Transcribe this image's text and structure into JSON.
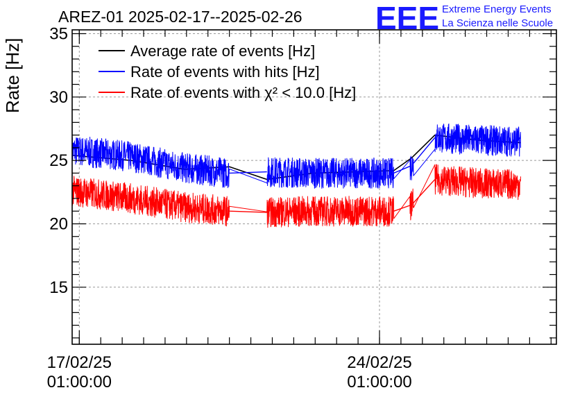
{
  "chart_data": {
    "type": "line",
    "title": "AREZ-01 2025-02-17--2025-02-26",
    "ylabel": "Rate [Hz]",
    "xlabel": "",
    "ylim": [
      10.5,
      35.3
    ],
    "xlim": [
      "2025-02-16T21:00:00",
      "2025-02-28T04:00:00"
    ],
    "y_ticks": [
      15,
      20,
      25,
      30,
      35
    ],
    "x_ticks": [
      {
        "x": "2025-02-17T01:00:00",
        "label_date": "17/02/25",
        "label_time": "01:00:00"
      },
      {
        "x": "2025-02-24T01:00:00",
        "label_date": "24/02/25",
        "label_time": "01:00:00"
      }
    ],
    "grid": true,
    "legend_position": "top-left",
    "segments": [
      {
        "start": "2025-02-16T21:00:00",
        "end": "2025-02-20T13:00:00"
      },
      {
        "start": "2025-02-21T10:00:00",
        "end": "2025-02-24T09:00:00"
      },
      {
        "start": "2025-02-24T18:00:00",
        "end": "2025-02-24T20:00:00"
      },
      {
        "start": "2025-02-25T08:00:00",
        "end": "2025-02-27T08:00:00"
      }
    ],
    "series": [
      {
        "name": "Average rate of events [Hz]",
        "color": "#000000",
        "points": [
          {
            "x": "2025-02-16T21:00:00",
            "y": 25.4
          },
          {
            "x": "2025-02-18T06:00:00",
            "y": 25.0
          },
          {
            "x": "2025-02-19T12:00:00",
            "y": 24.3
          },
          {
            "x": "2025-02-20T13:00:00",
            "y": 24.5
          },
          {
            "x": "2025-02-21T10:00:00",
            "y": 23.5
          },
          {
            "x": "2025-02-22T12:00:00",
            "y": 24.0
          },
          {
            "x": "2025-02-23T12:00:00",
            "y": 24.1
          },
          {
            "x": "2025-02-24T09:00:00",
            "y": 24.2
          },
          {
            "x": "2025-02-24T19:00:00",
            "y": 25.2
          },
          {
            "x": "2025-02-25T08:00:00",
            "y": 27.0
          },
          {
            "x": "2025-02-26T08:00:00",
            "y": 26.6
          },
          {
            "x": "2025-02-27T08:00:00",
            "y": 26.4
          }
        ]
      },
      {
        "name": "Rate of events with hits [Hz]",
        "color": "#0000ff",
        "points": [
          {
            "x": "2025-02-16T21:00:00",
            "y": 25.8
          },
          {
            "x": "2025-02-18T06:00:00",
            "y": 25.3
          },
          {
            "x": "2025-02-19T12:00:00",
            "y": 24.4
          },
          {
            "x": "2025-02-20T13:00:00",
            "y": 24.0
          },
          {
            "x": "2025-02-21T10:00:00",
            "y": 24.1
          },
          {
            "x": "2025-02-22T12:00:00",
            "y": 24.0
          },
          {
            "x": "2025-02-23T12:00:00",
            "y": 24.0
          },
          {
            "x": "2025-02-24T09:00:00",
            "y": 24.0
          },
          {
            "x": "2025-02-24T19:00:00",
            "y": 24.6
          },
          {
            "x": "2025-02-25T08:00:00",
            "y": 26.8
          },
          {
            "x": "2025-02-26T08:00:00",
            "y": 26.6
          },
          {
            "x": "2025-02-27T08:00:00",
            "y": 26.5
          }
        ]
      },
      {
        "name": "Rate of events with χ² < 10.0 [Hz]",
        "color": "#ff0000",
        "points": [
          {
            "x": "2025-02-16T21:00:00",
            "y": 22.6
          },
          {
            "x": "2025-02-18T06:00:00",
            "y": 22.0
          },
          {
            "x": "2025-02-19T12:00:00",
            "y": 21.3
          },
          {
            "x": "2025-02-20T13:00:00",
            "y": 21.0
          },
          {
            "x": "2025-02-21T10:00:00",
            "y": 20.9
          },
          {
            "x": "2025-02-22T12:00:00",
            "y": 21.0
          },
          {
            "x": "2025-02-23T12:00:00",
            "y": 21.0
          },
          {
            "x": "2025-02-24T09:00:00",
            "y": 21.0
          },
          {
            "x": "2025-02-24T19:00:00",
            "y": 21.5
          },
          {
            "x": "2025-02-25T08:00:00",
            "y": 23.5
          },
          {
            "x": "2025-02-26T08:00:00",
            "y": 23.2
          },
          {
            "x": "2025-02-27T08:00:00",
            "y": 23.1
          }
        ]
      }
    ],
    "noise_amplitude": 1.2
  },
  "logo": {
    "big": "EEE",
    "line1": "Extreme Energy Events",
    "line2": "La Scienza nelle Scuole"
  },
  "colors": {
    "grid": "#999999",
    "logo": "#1a1aff"
  }
}
